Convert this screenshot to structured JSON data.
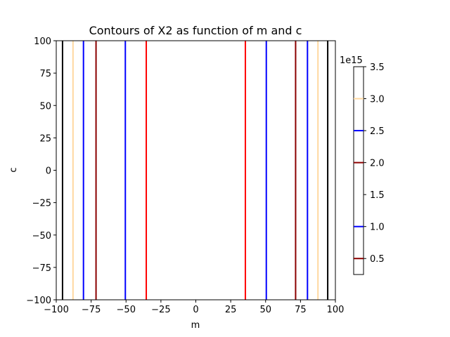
{
  "chart_data": {
    "type": "contour",
    "title": "Contours of X2 as function of m and c",
    "xlabel": "m",
    "ylabel": "c",
    "xlim": [
      -100,
      100
    ],
    "ylim": [
      -100,
      100
    ],
    "xticks": [
      -100,
      -75,
      -50,
      -25,
      0,
      25,
      50,
      75,
      100
    ],
    "yticks": [
      -100,
      -75,
      -50,
      -25,
      0,
      25,
      50,
      75,
      100
    ],
    "xtick_labels": [
      "−100",
      "−75",
      "−50",
      "−25",
      "0",
      "25",
      "50",
      "75",
      "100"
    ],
    "ytick_labels": [
      "−100",
      "−75",
      "−50",
      "−25",
      "0",
      "25",
      "50",
      "75",
      "100"
    ],
    "grid": false,
    "contour_lines": [
      {
        "m": -95.5,
        "color": "#000000"
      },
      {
        "m": -88,
        "color": "#ffd8a0"
      },
      {
        "m": -80.5,
        "color": "#0000ff"
      },
      {
        "m": -71.5,
        "color": "#8b0000"
      },
      {
        "m": -50.5,
        "color": "#0000ff"
      },
      {
        "m": -35.5,
        "color": "#ff0000"
      },
      {
        "m": 35.5,
        "color": "#ff0000"
      },
      {
        "m": 50.5,
        "color": "#0000ff"
      },
      {
        "m": 71.5,
        "color": "#8b0000"
      },
      {
        "m": 80,
        "color": "#0000ff"
      },
      {
        "m": 87.5,
        "color": "#ffd8a0"
      },
      {
        "m": 94.5,
        "color": "#000000"
      }
    ],
    "colorbar": {
      "range": [
        0.25,
        3.5
      ],
      "offset_label": "1e15",
      "ticks": [
        0.5,
        1.0,
        1.5,
        2.0,
        2.5,
        3.0,
        3.5
      ],
      "tick_labels": [
        "0.5",
        "1.0",
        "1.5",
        "2.0",
        "2.5",
        "3.0",
        "3.5"
      ],
      "levels": [
        {
          "value": 0.5,
          "color": "#8b0000"
        },
        {
          "value": 1.0,
          "color": "#0000ff"
        },
        {
          "value": 2.0,
          "color": "#8b0000"
        },
        {
          "value": 2.5,
          "color": "#0000ff"
        },
        {
          "value": 3.0,
          "color": "#ffd8a0"
        }
      ]
    }
  }
}
